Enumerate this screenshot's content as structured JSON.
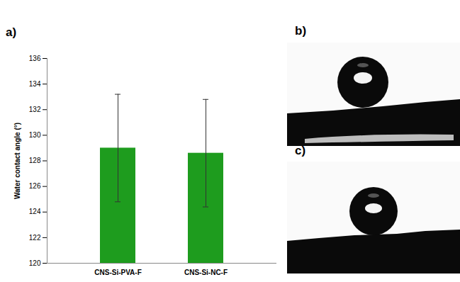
{
  "chart_data": {
    "type": "bar",
    "panel_label": "a)",
    "categories": [
      "CNS-Si-PVA-F",
      "CNS-Si-NC-F"
    ],
    "values": [
      129.0,
      128.6
    ],
    "errors": [
      4.2,
      4.2
    ],
    "color": "#1e9c1e",
    "ylabel": "Water contact angle (°)",
    "ylim": [
      120,
      136
    ],
    "yticks": [
      120,
      122,
      124,
      126,
      128,
      130,
      132,
      134,
      136
    ],
    "grid": false
  },
  "image_panels": [
    {
      "label": "b)"
    },
    {
      "label": "c)"
    }
  ]
}
